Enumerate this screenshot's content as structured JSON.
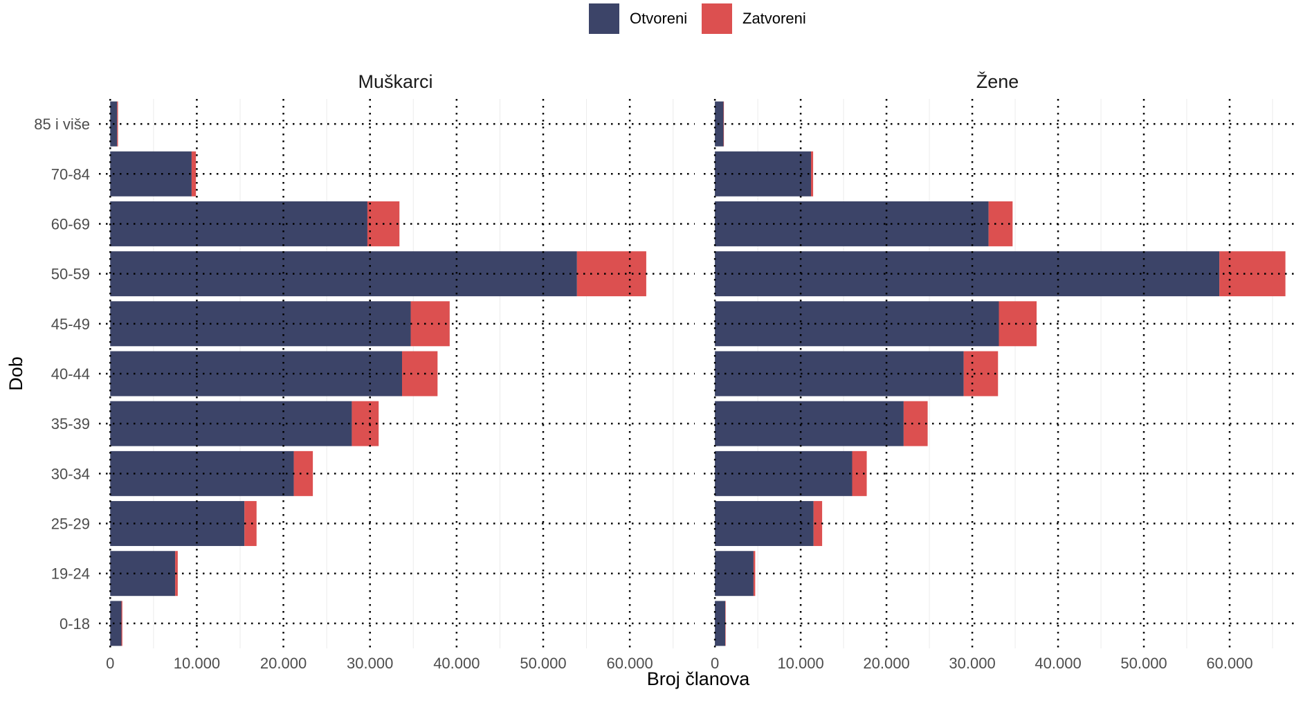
{
  "chart_data": {
    "type": "bar",
    "orientation": "horizontal",
    "stacked": true,
    "xlabel": "Broj članova",
    "ylabel": "Dob",
    "legend": {
      "position": "top",
      "entries": [
        {
          "name": "Otvoreni",
          "color": "#3c4468"
        },
        {
          "name": "Zatvoreni",
          "color": "#dc5050"
        }
      ]
    },
    "categories": [
      "0-18",
      "19-24",
      "25-29",
      "30-34",
      "35-39",
      "40-44",
      "45-49",
      "50-59",
      "60-69",
      "70-84",
      "85 i više"
    ],
    "x_ticks": [
      0,
      10000,
      20000,
      30000,
      40000,
      50000,
      60000
    ],
    "x_tick_labels": [
      "0",
      "10.000",
      "20.000",
      "30.000",
      "40.000",
      "50.000",
      "60.000"
    ],
    "xlim": [
      -1300,
      67500
    ],
    "panels": [
      {
        "title": "Muškarci",
        "series": [
          {
            "name": "Otvoreni",
            "values": [
              1300,
              7500,
              15500,
              21200,
              27900,
              33700,
              34700,
              53900,
              29700,
              9400,
              800
            ]
          },
          {
            "name": "Zatvoreni",
            "values": [
              100,
              300,
              1400,
              2200,
              3100,
              4100,
              4500,
              8000,
              3700,
              500,
              100
            ]
          }
        ]
      },
      {
        "title": "Žene",
        "series": [
          {
            "name": "Otvoreni",
            "values": [
              1200,
              4500,
              11500,
              16000,
              22000,
              29000,
              33100,
              58800,
              31900,
              11200,
              1000
            ]
          },
          {
            "name": "Zatvoreni",
            "values": [
              50,
              200,
              1000,
              1700,
              2800,
              4000,
              4400,
              7700,
              2800,
              250,
              50
            ]
          }
        ]
      }
    ]
  }
}
